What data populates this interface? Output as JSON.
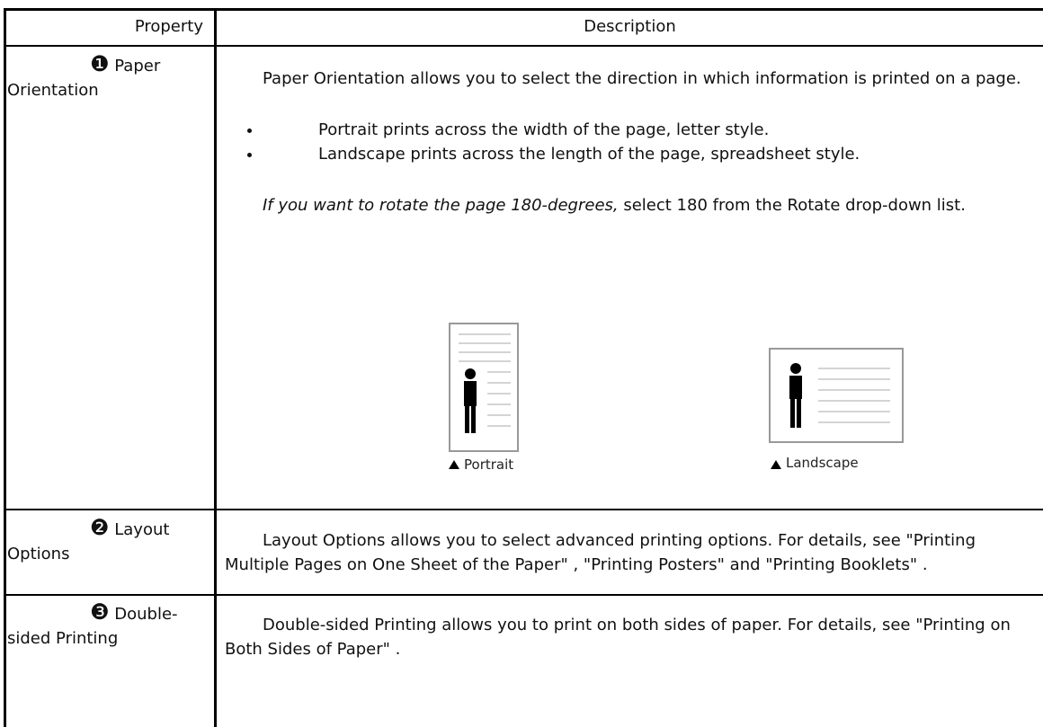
{
  "header": {
    "property": "Property",
    "description": "Description"
  },
  "rows": [
    {
      "marker": "❶",
      "property": "Paper Orientation",
      "intro": "Paper Orientation allows you to select the direction in which information is printed on a page.",
      "items": [
        "Portrait prints across the width of the page, letter style.",
        "Landscape prints across the length of the page, spreadsheet style."
      ],
      "note_italic": "If you want to rotate the page 180-degrees,",
      "note_rest": " select 180 from the Rotate drop-down list.",
      "images": [
        "Portrait",
        "Landscape"
      ]
    },
    {
      "marker": "❷",
      "property": "Layout Options",
      "description": "Layout Options allows you to select advanced printing options. For details, see \"Printing Multiple Pages on One Sheet of the Paper\" , \"Printing Posters\" and \"Printing Booklets\" ."
    },
    {
      "marker": "❸",
      "property": "Double-sided Printing",
      "description": "Double-sided Printing allows you to print on both sides of paper. For details, see \"Printing on Both Sides of Paper\" ."
    }
  ]
}
